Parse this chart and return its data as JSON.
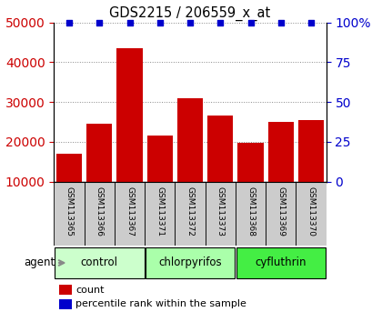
{
  "title": "GDS2215 / 206559_x_at",
  "samples": [
    "GSM113365",
    "GSM113366",
    "GSM113367",
    "GSM113371",
    "GSM113372",
    "GSM113373",
    "GSM113368",
    "GSM113369",
    "GSM113370"
  ],
  "counts": [
    17000,
    24500,
    43500,
    21500,
    31000,
    26500,
    19800,
    25000,
    25500
  ],
  "percentiles": [
    100,
    100,
    100,
    100,
    100,
    100,
    100,
    100,
    100
  ],
  "bar_color": "#cc0000",
  "percentile_color": "#0000cc",
  "ylim_left": [
    10000,
    50000
  ],
  "ylim_right": [
    0,
    100
  ],
  "yticks_left": [
    10000,
    20000,
    30000,
    40000,
    50000
  ],
  "yticks_right": [
    0,
    25,
    50,
    75,
    100
  ],
  "groups": [
    {
      "label": "control",
      "indices": [
        0,
        1,
        2
      ],
      "color": "#ccffcc"
    },
    {
      "label": "chlorpyrifos",
      "indices": [
        3,
        4,
        5
      ],
      "color": "#aaffaa"
    },
    {
      "label": "cyfluthrin",
      "indices": [
        6,
        7,
        8
      ],
      "color": "#44ee44"
    }
  ],
  "agent_label": "agent",
  "legend_count_label": "count",
  "legend_percentile_label": "percentile rank within the sample",
  "background_color": "#ffffff",
  "sample_box_color": "#cccccc",
  "grid_color": "#888888"
}
